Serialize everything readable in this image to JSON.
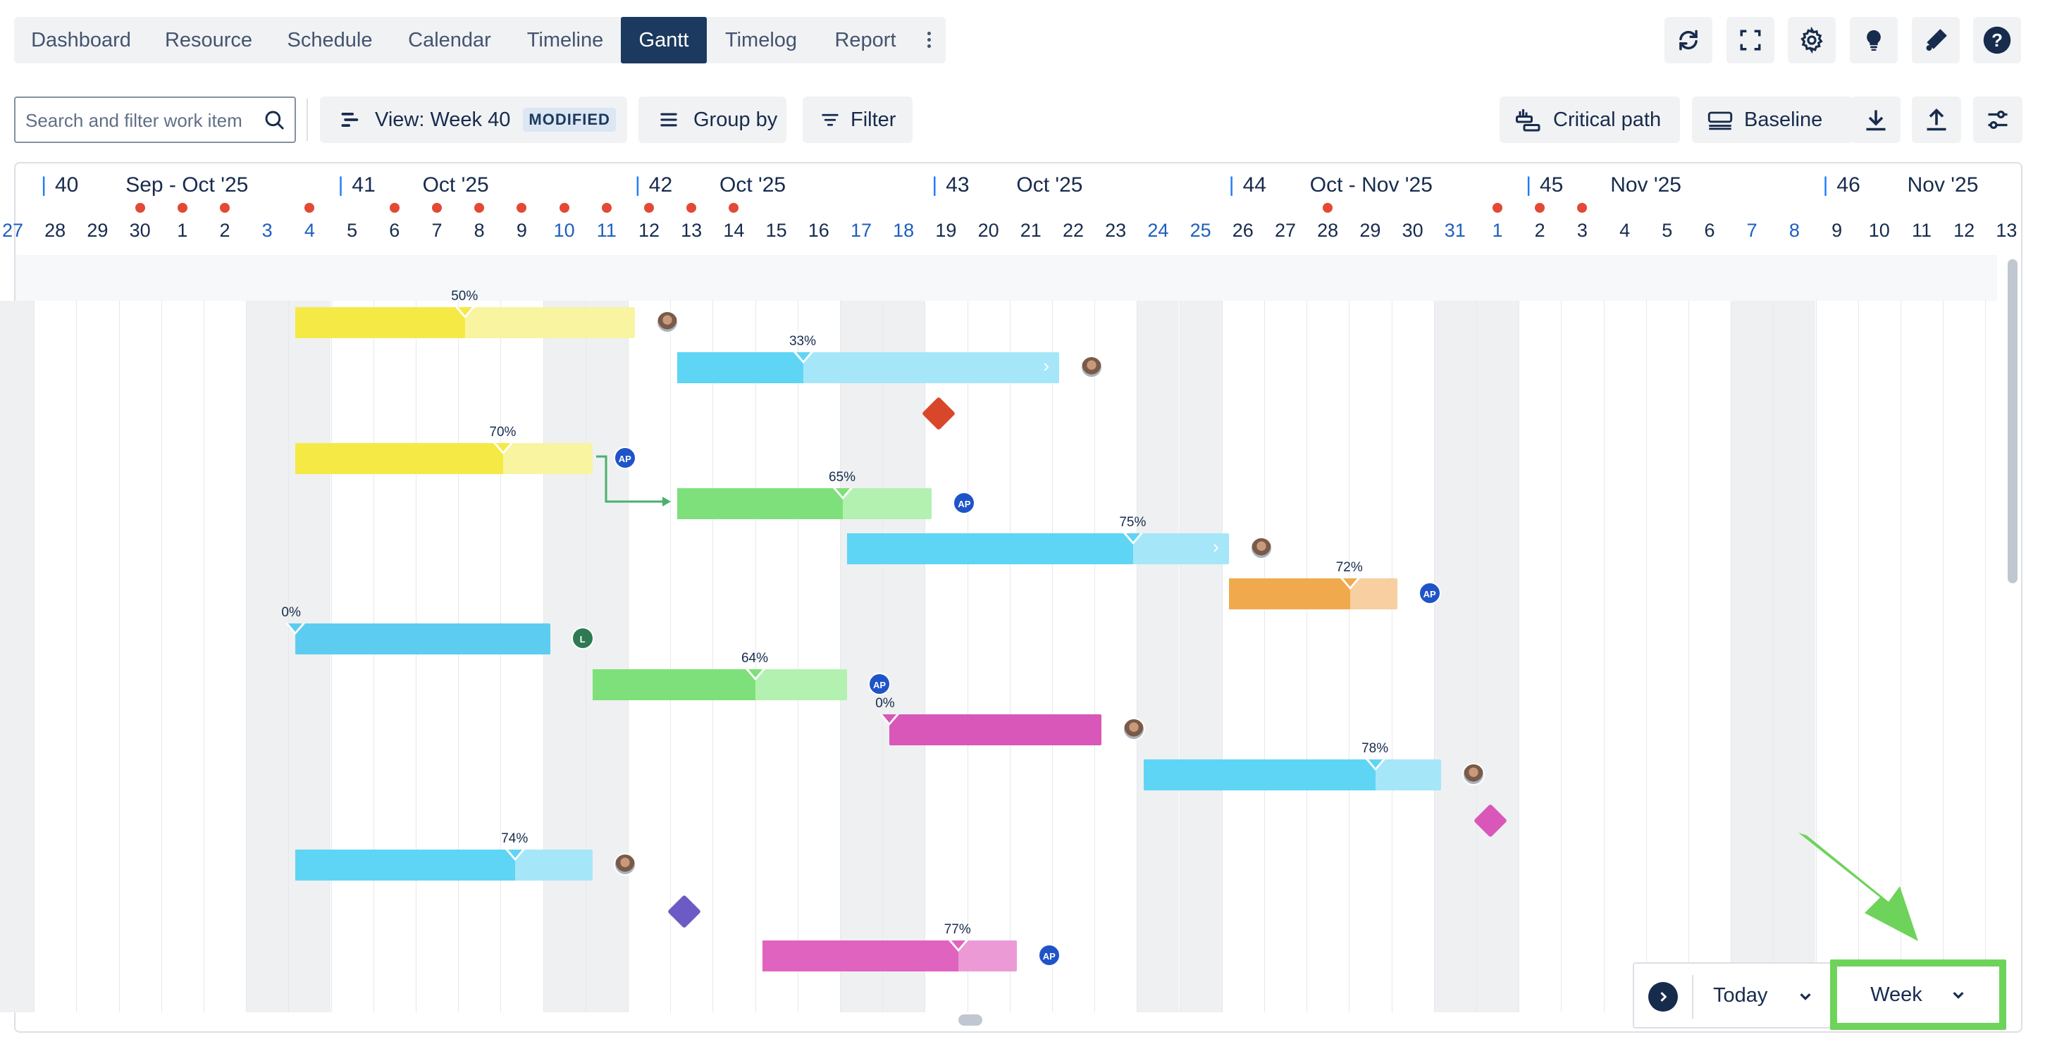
{
  "nav": {
    "tabs": [
      "Dashboard",
      "Resource",
      "Schedule",
      "Calendar",
      "Timeline",
      "Gantt",
      "Timelog",
      "Report"
    ],
    "active": "Gantt"
  },
  "toolbar": {
    "search_placeholder": "Search and filter work item",
    "view_label": "View: Week 40",
    "view_badge": "MODIFIED",
    "groupby_label": "Group by",
    "filter_label": "Filter",
    "critical_path_label": "Critical path",
    "baseline_label": "Baseline"
  },
  "timeline": {
    "weeks": [
      {
        "num": "40",
        "label": "Sep - Oct '25"
      },
      {
        "num": "41",
        "label": "Oct '25"
      },
      {
        "num": "42",
        "label": "Oct '25"
      },
      {
        "num": "43",
        "label": "Oct '25"
      },
      {
        "num": "44",
        "label": "Oct - Nov '25"
      },
      {
        "num": "45",
        "label": "Nov '25"
      },
      {
        "num": "46",
        "label": "Nov '25"
      }
    ],
    "days": [
      "27",
      "28",
      "29",
      "30",
      "1",
      "2",
      "3",
      "4",
      "5",
      "6",
      "7",
      "8",
      "9",
      "10",
      "11",
      "12",
      "13",
      "14",
      "15",
      "16",
      "17",
      "18",
      "19",
      "20",
      "21",
      "22",
      "23",
      "24",
      "25",
      "26",
      "27",
      "28",
      "29",
      "30",
      "31",
      "1",
      "2",
      "3",
      "4",
      "5",
      "6",
      "7",
      "8",
      "9",
      "10",
      "11",
      "12",
      "13"
    ],
    "holiday_day_indexes": [
      3,
      4,
      5,
      7,
      9,
      10,
      11,
      12,
      13,
      14,
      15,
      16,
      17,
      31,
      35,
      36,
      37
    ]
  },
  "tasks": [
    {
      "progress": "50%",
      "color": "#f5ea45",
      "light": "#f8f4a0",
      "avatar": "photo"
    },
    {
      "progress": "33%",
      "color": "#5fd5f5",
      "light": "#a6e6f9",
      "avatar": "photo"
    },
    {
      "progress": "70%",
      "color": "#f5ea45",
      "light": "#f8f4a0",
      "avatar": "AP"
    },
    {
      "progress": "65%",
      "color": "#7ee07a",
      "light": "#b3f1b0",
      "avatar": "AP"
    },
    {
      "progress": "75%",
      "color": "#5fd5f5",
      "light": "#a6e6f9",
      "avatar": "photo"
    },
    {
      "progress": "72%",
      "color": "#f0aa4d",
      "light": "#f7cfa0",
      "avatar": "AP"
    },
    {
      "progress": "0%",
      "color": "#5ccdf0",
      "light": "#5ccdf0",
      "avatar": "L"
    },
    {
      "progress": "64%",
      "color": "#7ee07a",
      "light": "#b3f1b0",
      "avatar": "AP"
    },
    {
      "progress": "0%",
      "color": "#d957b9",
      "light": "#d957b9",
      "avatar": "photo"
    },
    {
      "progress": "78%",
      "color": "#5fd5f5",
      "light": "#a6e6f9",
      "avatar": "photo"
    },
    {
      "progress": "74%",
      "color": "#5fd5f5",
      "light": "#a6e6f9",
      "avatar": "photo"
    },
    {
      "progress": "77%",
      "color": "#e064bf",
      "light": "#eb9ad6",
      "avatar": "AP"
    }
  ],
  "milestones": [
    {
      "color": "#d9472b"
    },
    {
      "color": "#d957b9"
    },
    {
      "color": "#6c5bc4"
    }
  ],
  "bottom": {
    "today_label": "Today",
    "scale_label": "Week"
  },
  "colors": {
    "nav_active": "#1c3a5f",
    "holiday_dot": "#e34935",
    "highlight": "#6ed35a",
    "avatar_blue": "#1f54c9",
    "avatar_green": "#2f7a52"
  }
}
